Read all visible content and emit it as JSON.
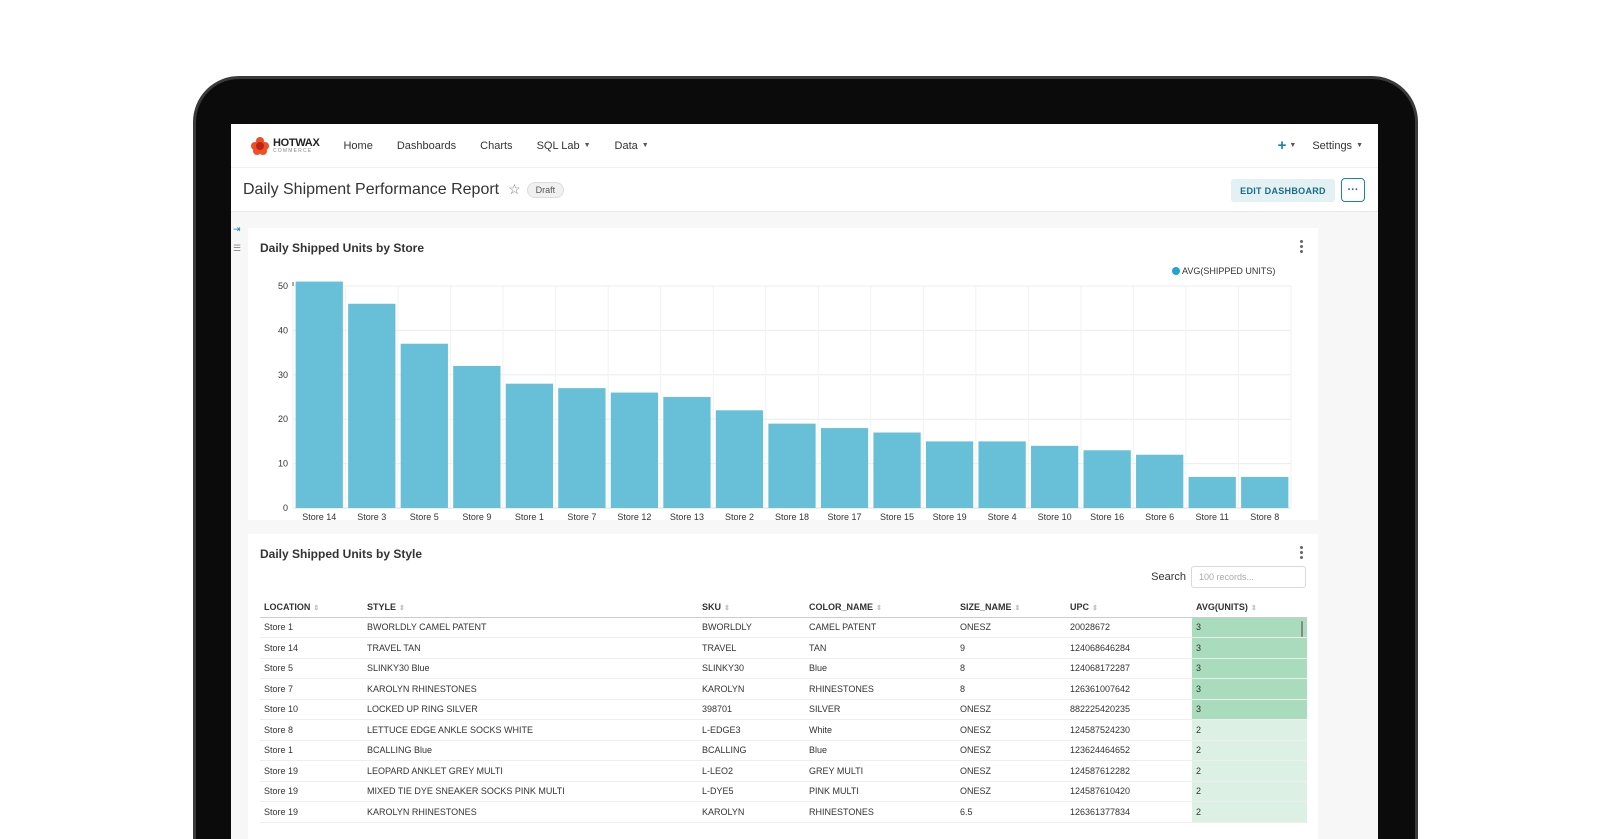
{
  "nav": {
    "logo_text": "HOTWAX",
    "logo_subtext": "COMMERCE",
    "items": [
      "Home",
      "Dashboards",
      "Charts",
      "SQL Lab",
      "Data"
    ],
    "plus_label": "+",
    "settings_label": "Settings"
  },
  "header": {
    "title": "Daily Shipment Performance Report",
    "status_badge": "Draft",
    "edit_button": "EDIT DASHBOARD",
    "more_button": "···"
  },
  "chart_card": {
    "title": "Daily Shipped Units by Store"
  },
  "chart_data": {
    "type": "bar",
    "title": "Daily Shipped Units by Store",
    "categories": [
      "Store 14",
      "Store 3",
      "Store 5",
      "Store 9",
      "Store 1",
      "Store 7",
      "Store 12",
      "Store 13",
      "Store 2",
      "Store 18",
      "Store 17",
      "Store 15",
      "Store 19",
      "Store 4",
      "Store 10",
      "Store 16",
      "Store 6",
      "Store 11",
      "Store 8"
    ],
    "series": [
      {
        "name": "AVG(SHIPPED UNITS)",
        "values": [
          51,
          46,
          37,
          32,
          28,
          27,
          26,
          25,
          22,
          19,
          18,
          17,
          15,
          15,
          14,
          13,
          12,
          7,
          7
        ]
      }
    ],
    "ylim": [
      0,
      50
    ],
    "yticks": [
      0,
      10,
      20,
      30,
      40,
      50
    ],
    "grid": true,
    "legend": "top-right",
    "bar_color": "#67c0d8",
    "legend_color": "#1fa5d6"
  },
  "table_card": {
    "title": "Daily Shipped Units by Style",
    "search_label": "Search",
    "search_placeholder": "100 records...",
    "columns": [
      "LOCATION",
      "STYLE",
      "SKU",
      "COLOR_NAME",
      "SIZE_NAME",
      "UPC",
      "AVG(UNITS)"
    ],
    "rows": [
      [
        "Store 1",
        "BWORLDLY CAMEL PATENT",
        "BWORLDLY",
        "CAMEL PATENT",
        "ONESZ",
        "20028672",
        "3"
      ],
      [
        "Store 14",
        "TRAVEL TAN",
        "TRAVEL",
        "TAN",
        "9",
        "124068646284",
        "3"
      ],
      [
        "Store 5",
        "SLINKY30 Blue",
        "SLINKY30",
        "Blue",
        "8",
        "124068172287",
        "3"
      ],
      [
        "Store 7",
        "KAROLYN RHINESTONES",
        "KAROLYN",
        "RHINESTONES",
        "8",
        "126361007642",
        "3"
      ],
      [
        "Store 10",
        "LOCKED UP RING SILVER",
        "398701",
        "SILVER",
        "ONESZ",
        "882225420235",
        "3"
      ],
      [
        "Store 8",
        "LETTUCE EDGE ANKLE SOCKS WHITE",
        "L-EDGE3",
        "White",
        "ONESZ",
        "124587524230",
        "2"
      ],
      [
        "Store 1",
        "BCALLING Blue",
        "BCALLING",
        "Blue",
        "ONESZ",
        "123624464652",
        "2"
      ],
      [
        "Store 19",
        "LEOPARD ANKLET GREY MULTI",
        "L-LEO2",
        "GREY MULTI",
        "ONESZ",
        "124587612282",
        "2"
      ],
      [
        "Store 19",
        "MIXED TIE DYE SNEAKER SOCKS PINK MULTI",
        "L-DYE5",
        "PINK MULTI",
        "ONESZ",
        "124587610420",
        "2"
      ],
      [
        "Store 19",
        "KAROLYN RHINESTONES",
        "KAROLYN",
        "RHINESTONES",
        "6.5",
        "126361377834",
        "2"
      ]
    ]
  }
}
